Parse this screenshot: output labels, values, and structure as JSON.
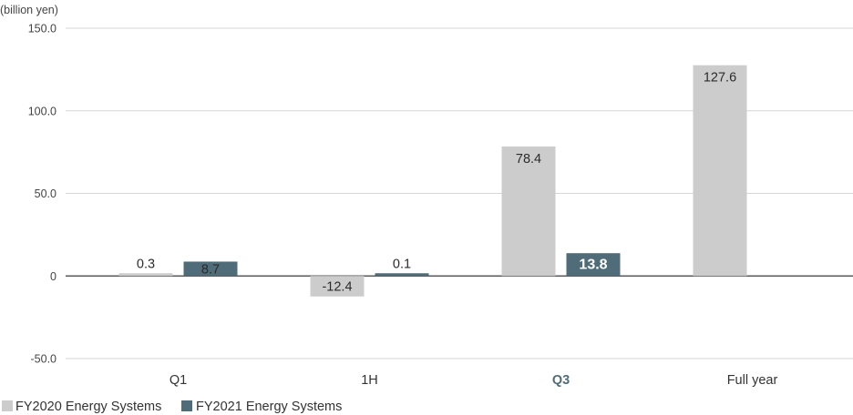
{
  "chart_data": {
    "type": "bar",
    "ylabel": "(billion yen)",
    "categories": [
      "Q1",
      "1H",
      "Q3",
      "Full year"
    ],
    "series": [
      {
        "name": "FY2020 Energy Systems",
        "values": [
          0.3,
          -12.4,
          78.4,
          127.6
        ],
        "color": "#cccccc"
      },
      {
        "name": "FY2021 Energy Systems",
        "values": [
          8.7,
          0.1,
          13.8,
          null
        ],
        "color": "#4f6c78"
      }
    ],
    "ylim": [
      -50,
      150
    ],
    "y_ticks": [
      "150.0",
      "100.0",
      "50.0",
      "0",
      "-50.0"
    ],
    "grid": true,
    "legend": "bottom-left"
  }
}
